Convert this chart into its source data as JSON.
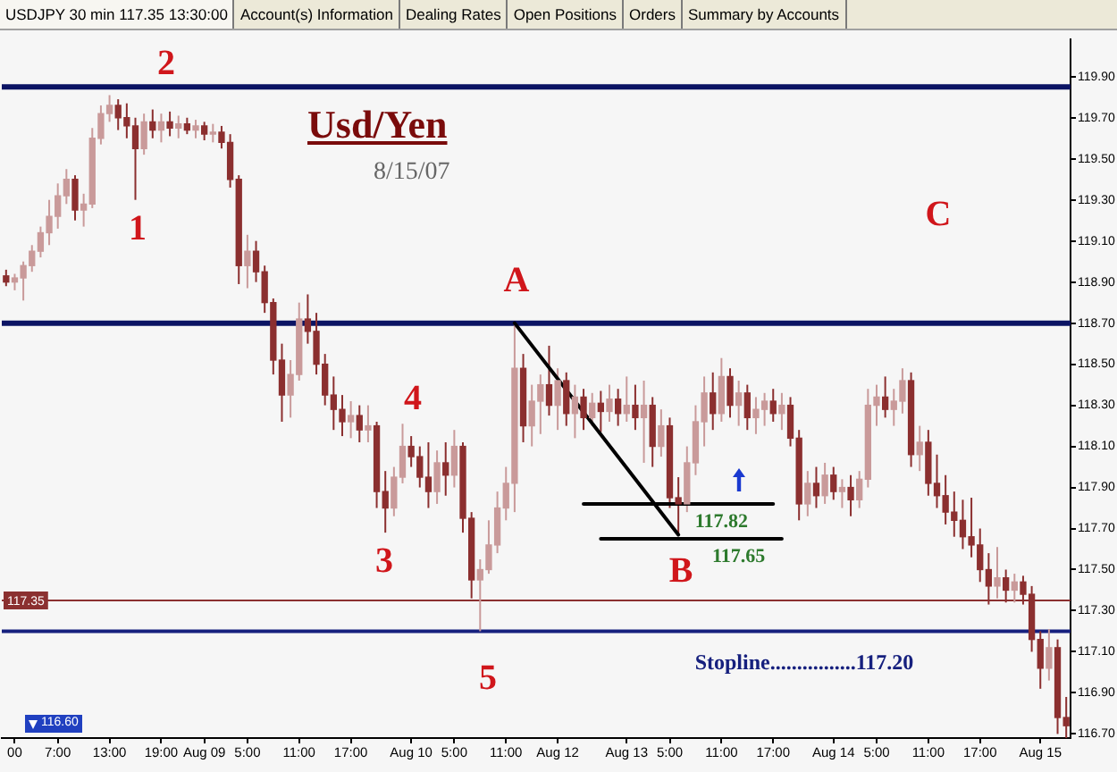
{
  "chart_data": {
    "type": "candlestick",
    "title": "Usd/Yen",
    "subtitle": "8/15/07",
    "categories": [
      null,
      "00",
      null,
      null,
      null,
      null,
      "7:00",
      null,
      null,
      null,
      null,
      null,
      "13:00",
      null,
      null,
      null,
      null,
      null,
      "19:00",
      null,
      null,
      null,
      null,
      "Aug 09",
      null,
      null,
      null,
      null,
      "5:00",
      null,
      null,
      null,
      null,
      null,
      "11:00",
      null,
      null,
      null,
      null,
      null,
      "17:00",
      null,
      null,
      null,
      null,
      null,
      null,
      "Aug 10",
      null,
      null,
      null,
      null,
      "5:00",
      null,
      null,
      null,
      null,
      null,
      "11:00",
      null,
      null,
      null,
      null,
      null,
      "Aug 12",
      null,
      null,
      null,
      null,
      null,
      null,
      null,
      "Aug 13",
      null,
      null,
      null,
      null,
      "5:00",
      null,
      null,
      null,
      null,
      null,
      "11:00",
      null,
      null,
      null,
      null,
      null,
      "17:00",
      null,
      null,
      null,
      null,
      null,
      null,
      "Aug 14",
      null,
      null,
      null,
      null,
      "5:00",
      null,
      null,
      null,
      null,
      null,
      "11:00",
      null,
      null,
      null,
      null,
      null,
      "17:00",
      null,
      null,
      null,
      null,
      null,
      null,
      "Aug 15",
      null,
      null,
      null
    ],
    "ohlc": [
      [
        118.93,
        118.96,
        118.88,
        118.9
      ],
      [
        118.9,
        118.94,
        118.86,
        118.92
      ],
      [
        118.92,
        119.0,
        118.81,
        118.98
      ],
      [
        118.98,
        119.08,
        118.95,
        119.05
      ],
      [
        119.05,
        119.17,
        119.02,
        119.14
      ],
      [
        119.14,
        119.3,
        119.08,
        119.22
      ],
      [
        119.22,
        119.38,
        119.16,
        119.32
      ],
      [
        119.32,
        119.45,
        119.28,
        119.4
      ],
      [
        119.4,
        119.42,
        119.2,
        119.25
      ],
      [
        119.25,
        119.33,
        119.17,
        119.28
      ],
      [
        119.28,
        119.65,
        119.26,
        119.6
      ],
      [
        119.6,
        119.76,
        119.57,
        119.72
      ],
      [
        119.72,
        119.81,
        119.68,
        119.76
      ],
      [
        119.76,
        119.79,
        119.64,
        119.7
      ],
      [
        119.7,
        119.77,
        119.6,
        119.66
      ],
      [
        119.66,
        119.7,
        119.3,
        119.55
      ],
      [
        119.55,
        119.72,
        119.52,
        119.68
      ],
      [
        119.68,
        119.74,
        119.6,
        119.64
      ],
      [
        119.64,
        119.72,
        119.58,
        119.68
      ],
      [
        119.68,
        119.73,
        119.61,
        119.65
      ],
      [
        119.65,
        119.71,
        119.6,
        119.67
      ],
      [
        119.67,
        119.7,
        119.62,
        119.64
      ],
      [
        119.64,
        119.69,
        119.6,
        119.66
      ],
      [
        119.66,
        119.68,
        119.59,
        119.62
      ],
      [
        119.62,
        119.67,
        119.58,
        119.63
      ],
      [
        119.63,
        119.66,
        119.55,
        119.58
      ],
      [
        119.58,
        119.62,
        119.36,
        119.4
      ],
      [
        119.4,
        119.42,
        118.89,
        118.98
      ],
      [
        118.98,
        119.13,
        118.87,
        119.05
      ],
      [
        119.05,
        119.1,
        118.9,
        118.95
      ],
      [
        118.95,
        118.98,
        118.75,
        118.8
      ],
      [
        118.8,
        118.82,
        118.45,
        118.52
      ],
      [
        118.52,
        118.6,
        118.22,
        118.35
      ],
      [
        118.35,
        118.52,
        118.24,
        118.45
      ],
      [
        118.45,
        118.8,
        118.42,
        118.72
      ],
      [
        118.72,
        118.84,
        118.6,
        118.66
      ],
      [
        118.66,
        118.75,
        118.45,
        118.5
      ],
      [
        118.5,
        118.55,
        118.3,
        118.35
      ],
      [
        118.35,
        118.44,
        118.18,
        118.28
      ],
      [
        118.28,
        118.35,
        118.15,
        118.22
      ],
      [
        118.22,
        118.32,
        118.14,
        118.25
      ],
      [
        118.25,
        118.3,
        118.12,
        118.18
      ],
      [
        118.18,
        118.3,
        118.12,
        118.2
      ],
      [
        118.2,
        118.22,
        117.8,
        117.88
      ],
      [
        117.88,
        117.98,
        117.68,
        117.8
      ],
      [
        117.8,
        118.0,
        117.76,
        117.95
      ],
      [
        117.95,
        118.21,
        117.92,
        118.1
      ],
      [
        118.1,
        118.15,
        118.0,
        118.05
      ],
      [
        118.05,
        118.1,
        117.9,
        117.95
      ],
      [
        117.95,
        118.12,
        117.8,
        117.88
      ],
      [
        117.88,
        118.08,
        117.82,
        118.02
      ],
      [
        118.02,
        118.12,
        117.86,
        117.96
      ],
      [
        117.96,
        118.18,
        117.9,
        118.1
      ],
      [
        118.1,
        118.12,
        117.68,
        117.75
      ],
      [
        117.75,
        117.78,
        117.36,
        117.45
      ],
      [
        117.45,
        117.55,
        117.2,
        117.5
      ],
      [
        117.5,
        117.74,
        117.48,
        117.62
      ],
      [
        117.62,
        117.88,
        117.58,
        117.8
      ],
      [
        117.8,
        118.0,
        117.74,
        117.92
      ],
      [
        117.92,
        118.7,
        117.78,
        118.48
      ],
      [
        118.48,
        118.55,
        118.12,
        118.2
      ],
      [
        118.2,
        118.4,
        118.1,
        118.32
      ],
      [
        118.32,
        118.45,
        118.16,
        118.4
      ],
      [
        118.4,
        118.59,
        118.25,
        118.3
      ],
      [
        118.3,
        118.48,
        118.18,
        118.42
      ],
      [
        118.42,
        118.46,
        118.2,
        118.26
      ],
      [
        118.26,
        118.4,
        118.14,
        118.34
      ],
      [
        118.34,
        118.38,
        118.18,
        118.24
      ],
      [
        118.24,
        118.36,
        118.2,
        118.31
      ],
      [
        118.31,
        118.37,
        118.17,
        118.27
      ],
      [
        118.27,
        118.4,
        118.22,
        118.33
      ],
      [
        118.33,
        118.38,
        118.2,
        118.26
      ],
      [
        118.26,
        118.44,
        118.22,
        118.3
      ],
      [
        118.3,
        118.4,
        118.18,
        118.24
      ],
      [
        118.24,
        118.42,
        118.02,
        118.3
      ],
      [
        118.3,
        118.34,
        118.0,
        118.1
      ],
      [
        118.1,
        118.28,
        118.05,
        118.2
      ],
      [
        118.2,
        118.24,
        117.8,
        117.85
      ],
      [
        117.85,
        117.95,
        117.67,
        117.82
      ],
      [
        117.82,
        118.1,
        117.78,
        118.02
      ],
      [
        118.02,
        118.3,
        117.96,
        118.22
      ],
      [
        118.22,
        118.44,
        118.1,
        118.36
      ],
      [
        118.36,
        118.46,
        118.18,
        118.26
      ],
      [
        118.26,
        118.53,
        118.22,
        118.44
      ],
      [
        118.44,
        118.48,
        118.24,
        118.3
      ],
      [
        118.3,
        118.42,
        118.2,
        118.36
      ],
      [
        118.36,
        118.4,
        118.18,
        118.24
      ],
      [
        118.24,
        118.34,
        118.16,
        118.28
      ],
      [
        118.28,
        118.36,
        118.2,
        118.32
      ],
      [
        118.32,
        118.38,
        118.22,
        118.26
      ],
      [
        118.26,
        118.36,
        118.18,
        118.3
      ],
      [
        118.3,
        118.34,
        118.1,
        118.14
      ],
      [
        118.14,
        118.18,
        117.74,
        117.82
      ],
      [
        117.82,
        117.98,
        117.76,
        117.92
      ],
      [
        117.92,
        118.0,
        117.8,
        117.86
      ],
      [
        117.86,
        118.02,
        117.82,
        117.96
      ],
      [
        117.96,
        118.0,
        117.84,
        117.88
      ],
      [
        117.88,
        117.94,
        117.8,
        117.9
      ],
      [
        117.9,
        117.96,
        117.76,
        117.84
      ],
      [
        117.84,
        117.98,
        117.8,
        117.94
      ],
      [
        117.94,
        118.38,
        117.9,
        118.3
      ],
      [
        118.3,
        118.4,
        118.2,
        118.34
      ],
      [
        118.34,
        118.44,
        118.24,
        118.28
      ],
      [
        118.28,
        118.38,
        118.2,
        118.32
      ],
      [
        118.32,
        118.48,
        118.26,
        118.42
      ],
      [
        118.42,
        118.46,
        118.0,
        118.06
      ],
      [
        118.06,
        118.2,
        117.98,
        118.12
      ],
      [
        118.12,
        118.18,
        117.86,
        117.92
      ],
      [
        117.92,
        118.06,
        117.8,
        117.86
      ],
      [
        117.86,
        117.96,
        117.72,
        117.78
      ],
      [
        117.78,
        117.88,
        117.66,
        117.74
      ],
      [
        117.74,
        117.84,
        117.6,
        117.66
      ],
      [
        117.66,
        117.85,
        117.56,
        117.62
      ],
      [
        117.62,
        117.7,
        117.44,
        117.5
      ],
      [
        117.5,
        117.58,
        117.33,
        117.42
      ],
      [
        117.42,
        117.61,
        117.36,
        117.46
      ],
      [
        117.46,
        117.5,
        117.34,
        117.4
      ],
      [
        117.4,
        117.48,
        117.34,
        117.44
      ],
      [
        117.44,
        117.47,
        117.33,
        117.38
      ],
      [
        117.38,
        117.42,
        117.1,
        117.16
      ],
      [
        117.16,
        117.2,
        116.92,
        117.02
      ],
      [
        117.02,
        117.21,
        116.96,
        117.12
      ],
      [
        117.12,
        117.16,
        116.7,
        116.78
      ],
      [
        116.78,
        116.88,
        116.68,
        116.74
      ]
    ],
    "colors": [
      "#8b2f2f",
      "#c99a9a",
      "#c99a9a",
      "#c99a9a",
      "#c99a9a",
      "#c99a9a",
      "#c99a9a",
      "#c99a9a",
      "#8b2f2f",
      "#c99a9a",
      "#c99a9a",
      "#c99a9a",
      "#c99a9a",
      "#8b2f2f",
      "#8b2f2f",
      "#8b2f2f",
      "#c99a9a",
      "#8b2f2f",
      "#c99a9a",
      "#8b2f2f",
      "#c99a9a",
      "#8b2f2f",
      "#c99a9a",
      "#8b2f2f",
      "#c99a9a",
      "#8b2f2f",
      "#8b2f2f",
      "#8b2f2f",
      "#c99a9a",
      "#8b2f2f",
      "#8b2f2f",
      "#8b2f2f",
      "#8b2f2f",
      "#c99a9a",
      "#c99a9a",
      "#8b2f2f",
      "#8b2f2f",
      "#8b2f2f",
      "#8b2f2f",
      "#8b2f2f",
      "#c99a9a",
      "#8b2f2f",
      "#c99a9a",
      "#8b2f2f",
      "#8b2f2f",
      "#c99a9a",
      "#c99a9a",
      "#8b2f2f",
      "#8b2f2f",
      "#8b2f2f",
      "#c99a9a",
      "#8b2f2f",
      "#c99a9a",
      "#8b2f2f",
      "#8b2f2f",
      "#c99a9a",
      "#c99a9a",
      "#c99a9a",
      "#c99a9a",
      "#c99a9a",
      "#8b2f2f",
      "#c99a9a",
      "#c99a9a",
      "#8b2f2f",
      "#c99a9a",
      "#8b2f2f",
      "#c99a9a",
      "#8b2f2f",
      "#c99a9a",
      "#8b2f2f",
      "#c99a9a",
      "#8b2f2f",
      "#c99a9a",
      "#8b2f2f",
      "#c99a9a",
      "#8b2f2f",
      "#c99a9a",
      "#8b2f2f",
      "#8b2f2f",
      "#c99a9a",
      "#c99a9a",
      "#c99a9a",
      "#8b2f2f",
      "#c99a9a",
      "#8b2f2f",
      "#c99a9a",
      "#8b2f2f",
      "#c99a9a",
      "#c99a9a",
      "#8b2f2f",
      "#c99a9a",
      "#8b2f2f",
      "#8b2f2f",
      "#c99a9a",
      "#8b2f2f",
      "#c99a9a",
      "#8b2f2f",
      "#c99a9a",
      "#8b2f2f",
      "#c99a9a",
      "#c99a9a",
      "#c99a9a",
      "#8b2f2f",
      "#c99a9a",
      "#c99a9a",
      "#8b2f2f",
      "#c99a9a",
      "#8b2f2f",
      "#8b2f2f",
      "#8b2f2f",
      "#8b2f2f",
      "#8b2f2f",
      "#8b2f2f",
      "#8b2f2f",
      "#8b2f2f",
      "#c99a9a",
      "#8b2f2f",
      "#c99a9a",
      "#8b2f2f",
      "#8b2f2f",
      "#8b2f2f",
      "#c99a9a",
      "#8b2f2f",
      "#8b2f2f"
    ],
    "series": [
      {
        "type": "line",
        "color": "#000000",
        "values": [
          null,
          null,
          null,
          null,
          null,
          null,
          null,
          null,
          null,
          null,
          null,
          null,
          null,
          null,
          null,
          null,
          null,
          null,
          null,
          null,
          null,
          null,
          null,
          null,
          null,
          null,
          null,
          null,
          null,
          null,
          null,
          null,
          null,
          null,
          null,
          null,
          null,
          null,
          null,
          null,
          null,
          null,
          null,
          null,
          null,
          null,
          null,
          null,
          null,
          null,
          null,
          null,
          null,
          null,
          null,
          null,
          null,
          null,
          null,
          118.7,
          null,
          null,
          null,
          null,
          null,
          null,
          null,
          null,
          null,
          null,
          null,
          null,
          null,
          null,
          null,
          null,
          null,
          null,
          117.67,
          null,
          null,
          null,
          null,
          null,
          null,
          null,
          null,
          null,
          null,
          null,
          null,
          null,
          null,
          null,
          null,
          null,
          null,
          null,
          null,
          null,
          null,
          null,
          null,
          null,
          null,
          null,
          null,
          null,
          null,
          null,
          null,
          null,
          null,
          null,
          null,
          null,
          null,
          null,
          null,
          null,
          null,
          null,
          null,
          null
        ]
      },
      {
        "type": "line",
        "color": "#000000",
        "values": [
          null,
          null,
          null,
          null,
          null,
          null,
          null,
          null,
          null,
          null,
          null,
          null,
          null,
          null,
          null,
          null,
          null,
          null,
          null,
          null,
          null,
          null,
          null,
          null,
          null,
          null,
          null,
          null,
          null,
          null,
          null,
          null,
          null,
          null,
          null,
          null,
          null,
          null,
          null,
          null,
          null,
          null,
          null,
          null,
          null,
          null,
          null,
          null,
          null,
          null,
          null,
          null,
          null,
          null,
          null,
          null,
          null,
          null,
          null,
          null,
          null,
          null,
          null,
          null,
          null,
          null,
          null,
          117.82,
          117.82,
          117.82,
          117.82,
          117.82,
          117.82,
          117.82,
          117.82,
          117.82,
          117.82,
          117.82,
          117.82,
          117.82,
          117.82,
          117.82,
          117.82,
          117.82,
          117.82,
          117.82,
          117.82,
          117.82,
          117.82,
          117.82,
          null,
          null,
          null,
          null,
          null,
          null,
          null,
          null,
          null,
          null,
          null,
          null,
          null,
          null,
          null,
          null,
          null,
          null,
          null,
          null,
          null,
          null,
          null,
          null,
          null,
          null,
          null,
          null,
          null,
          null,
          null,
          null,
          null,
          null
        ],
        "value_labels": [
          null,
          null,
          null,
          null,
          null,
          null,
          null,
          null,
          null,
          null,
          null,
          null,
          null,
          null,
          null,
          null,
          null,
          null,
          null,
          null,
          null,
          null,
          null,
          null,
          null,
          null,
          null,
          null,
          null,
          null,
          null,
          null,
          null,
          null,
          null,
          null,
          null,
          null,
          null,
          null,
          null,
          null,
          null,
          null,
          null,
          null,
          null,
          null,
          null,
          null,
          null,
          null,
          null,
          null,
          null,
          null,
          null,
          null,
          null,
          null,
          null,
          null,
          null,
          null,
          null,
          null,
          null,
          null,
          null,
          null,
          null,
          null,
          null,
          null,
          null,
          null,
          null,
          null,
          null,
          null,
          null,
          null,
          null,
          "117.82",
          null,
          null,
          null,
          null,
          null,
          null,
          null,
          null,
          null,
          null,
          null,
          null,
          null,
          null,
          null,
          null,
          null,
          null,
          null,
          null,
          null,
          null,
          null,
          null,
          null,
          null,
          null,
          null,
          null,
          null,
          null,
          null,
          null,
          null,
          null,
          null,
          null,
          null,
          null,
          null
        ]
      },
      {
        "type": "line",
        "color": "#000000",
        "values": [
          null,
          null,
          null,
          null,
          null,
          null,
          null,
          null,
          null,
          null,
          null,
          null,
          null,
          null,
          null,
          null,
          null,
          null,
          null,
          null,
          null,
          null,
          null,
          null,
          null,
          null,
          null,
          null,
          null,
          null,
          null,
          null,
          null,
          null,
          null,
          null,
          null,
          null,
          null,
          null,
          null,
          null,
          null,
          null,
          null,
          null,
          null,
          null,
          null,
          null,
          null,
          null,
          null,
          null,
          null,
          null,
          null,
          null,
          null,
          null,
          null,
          null,
          null,
          null,
          null,
          null,
          null,
          null,
          null,
          117.65,
          117.65,
          117.65,
          117.65,
          117.65,
          117.65,
          117.65,
          117.65,
          117.65,
          117.65,
          117.65,
          117.65,
          117.65,
          117.65,
          117.65,
          117.65,
          117.65,
          117.65,
          117.65,
          117.65,
          117.65,
          117.65,
          null,
          null,
          null,
          null,
          null,
          null,
          null,
          null,
          null,
          null,
          null,
          null,
          null,
          null,
          null,
          null,
          null,
          null,
          null,
          null,
          null,
          null,
          null,
          null,
          null,
          null,
          null,
          null,
          null,
          null,
          null,
          null,
          null
        ],
        "value_labels": [
          null,
          null,
          null,
          null,
          null,
          null,
          null,
          null,
          null,
          null,
          null,
          null,
          null,
          null,
          null,
          null,
          null,
          null,
          null,
          null,
          null,
          null,
          null,
          null,
          null,
          null,
          null,
          null,
          null,
          null,
          null,
          null,
          null,
          null,
          null,
          null,
          null,
          null,
          null,
          null,
          null,
          null,
          null,
          null,
          null,
          null,
          null,
          null,
          null,
          null,
          null,
          null,
          null,
          null,
          null,
          null,
          null,
          null,
          null,
          null,
          null,
          null,
          null,
          null,
          null,
          null,
          null,
          null,
          null,
          null,
          null,
          null,
          null,
          null,
          null,
          null,
          null,
          null,
          null,
          null,
          null,
          null,
          null,
          null,
          null,
          "117.65",
          null,
          null,
          null,
          null,
          null,
          null,
          null,
          null,
          null,
          null,
          null,
          null,
          null,
          null,
          null,
          null,
          null,
          null,
          null,
          null,
          null,
          null,
          null,
          null,
          null,
          null,
          null,
          null,
          null,
          null,
          null,
          null,
          null,
          null,
          null,
          null,
          null,
          null
        ]
      }
    ],
    "ylim": [
      116.68,
      120.08
    ],
    "yticks": [
      {
        "value": 116.7,
        "label": "116.70"
      },
      {
        "value": 116.9,
        "label": "116.90"
      },
      {
        "value": 117.1,
        "label": "117.10"
      },
      {
        "value": 117.3,
        "label": "117.30"
      },
      {
        "value": 117.5,
        "label": "117.50"
      },
      {
        "value": 117.7,
        "label": "117.70"
      },
      {
        "value": 117.9,
        "label": "117.90"
      },
      {
        "value": 118.1,
        "label": "118.10"
      },
      {
        "value": 118.3,
        "label": "118.30"
      },
      {
        "value": 118.5,
        "label": "118.50"
      },
      {
        "value": 118.7,
        "label": "118.70"
      },
      {
        "value": 118.9,
        "label": "118.90"
      },
      {
        "value": 119.1,
        "label": "119.10"
      },
      {
        "value": 119.3,
        "label": "119.30"
      },
      {
        "value": 119.5,
        "label": "119.50"
      },
      {
        "value": 119.7,
        "label": "119.70"
      },
      {
        "value": 119.9,
        "label": "119.90"
      }
    ],
    "ref_lines": [
      {
        "axis": "y",
        "value": 119.85,
        "color": "#0b1464"
      },
      {
        "axis": "y",
        "value": 118.7,
        "color": "#0b1464"
      },
      {
        "axis": "y",
        "value": 117.2,
        "label": "Stopline................117.20",
        "color": "#16207e"
      },
      {
        "axis": "y",
        "value": 117.35,
        "label": "117.35",
        "color": "#8b3030"
      }
    ],
    "annotations": [
      "USDJPY 30 min 117.35 13:30:00",
      "Account(s) Information",
      "Dealing Rates",
      "Open Positions",
      "Orders",
      "Summary by Accounts",
      "116.60",
      {
        "text": "2",
        "y": 119.8
      },
      {
        "text": "1",
        "y": 119.3
      },
      "C",
      {
        "text": "A",
        "y": 118.7
      },
      "4",
      {
        "text": "3",
        "y": 117.68
      },
      {
        "text": "B",
        "y": 117.67
      },
      {
        "text": "5",
        "y": 117.2
      }
    ]
  }
}
